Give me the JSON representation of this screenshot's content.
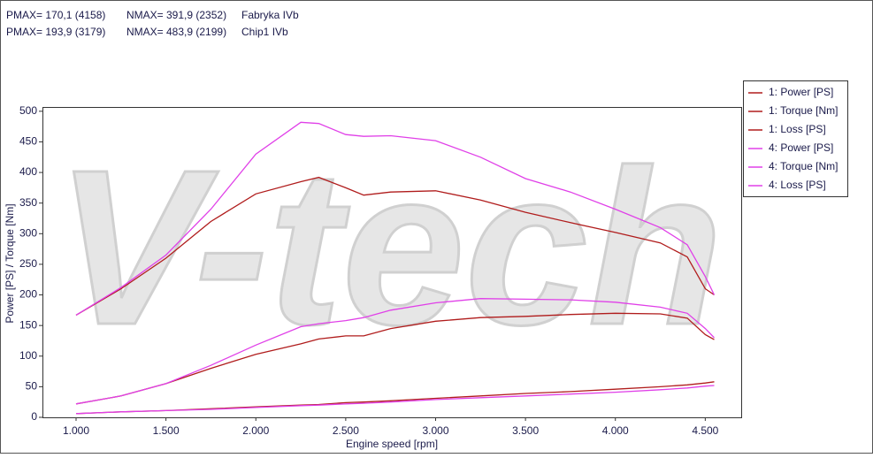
{
  "header": {
    "rows": [
      [
        "PMAX= 170,1 (4158)",
        "NMAX= 391,9 (2352)",
        "Fabryka IVb"
      ],
      [
        "PMAX= 193,9 (3179)",
        "NMAX= 483,9 (2199)",
        "Chip1 IVb"
      ]
    ]
  },
  "chart_data": {
    "type": "line",
    "watermark": "V-tech",
    "x_label": "Engine speed [rpm]",
    "y_label": "Power [PS] / Torque [Nm]",
    "x": [
      1000,
      1250,
      1500,
      1750,
      2000,
      2250,
      2350,
      2500,
      2600,
      2750,
      3000,
      3250,
      3500,
      3750,
      4000,
      4250,
      4400,
      4500,
      4550
    ],
    "xlim": [
      813,
      4700
    ],
    "xticks": [
      {
        "value": 1000,
        "label": "1.000"
      },
      {
        "value": 1500,
        "label": "1.500"
      },
      {
        "value": 2000,
        "label": "2.000"
      },
      {
        "value": 2500,
        "label": "2.500"
      },
      {
        "value": 3000,
        "label": "3.000"
      },
      {
        "value": 3500,
        "label": "3.500"
      },
      {
        "value": 4000,
        "label": "4.000"
      },
      {
        "value": 4500,
        "label": "4.500"
      }
    ],
    "ylim": [
      0,
      507
    ],
    "yticks": [
      0,
      50,
      100,
      150,
      200,
      250,
      300,
      350,
      400,
      450,
      500
    ],
    "legend": "right",
    "series": [
      {
        "name": "1: Power [PS]",
        "color": "#b01c1c",
        "values": [
          22,
          35,
          55,
          80,
          103,
          120,
          128,
          133,
          133,
          145,
          157,
          163,
          165,
          168,
          170,
          169,
          162,
          135,
          127
        ]
      },
      {
        "name": "1: Torque [Nm]",
        "color": "#b01c1c",
        "values": [
          167,
          210,
          260,
          320,
          365,
          385,
          392,
          375,
          363,
          368,
          370,
          355,
          335,
          318,
          302,
          285,
          262,
          210,
          200
        ]
      },
      {
        "name": "1: Loss [PS]",
        "color": "#b01c1c",
        "values": [
          6,
          9,
          11,
          14,
          17,
          20,
          21,
          24,
          25,
          27,
          31,
          35,
          39,
          42,
          46,
          50,
          53,
          56,
          58
        ]
      },
      {
        "name": "4: Power [PS]",
        "color": "#e040e8",
        "values": [
          22,
          35,
          55,
          85,
          118,
          148,
          153,
          158,
          163,
          175,
          187,
          194,
          193,
          192,
          188,
          180,
          170,
          145,
          130
        ]
      },
      {
        "name": "4: Torque [Nm]",
        "color": "#e040e8",
        "values": [
          167,
          212,
          265,
          340,
          430,
          482,
          480,
          462,
          459,
          460,
          452,
          425,
          390,
          368,
          340,
          310,
          282,
          230,
          200
        ]
      },
      {
        "name": "4: Loss [PS]",
        "color": "#e040e8",
        "values": [
          6,
          9,
          11,
          13,
          16,
          19,
          20,
          22,
          23,
          25,
          29,
          32,
          35,
          38,
          41,
          45,
          48,
          51,
          52
        ]
      }
    ]
  }
}
